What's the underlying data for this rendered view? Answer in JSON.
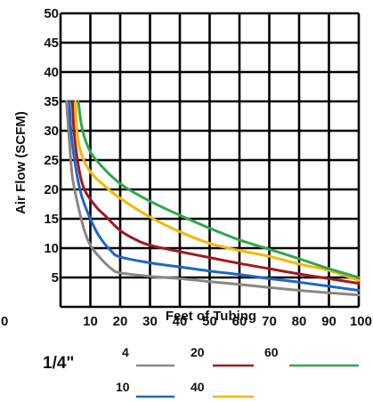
{
  "chart_data": {
    "type": "line",
    "title": "",
    "xlabel": "Feet of Tubing",
    "ylabel": "Air Flow (SCFM)",
    "xlim": [
      0,
      100
    ],
    "ylim": [
      0,
      50
    ],
    "x_tick_labels": [
      "0",
      "10",
      "20",
      "30",
      "40",
      "50",
      "60",
      "70",
      "80",
      "90",
      "100"
    ],
    "y_tick_labels": [
      "5",
      "10",
      "15",
      "20",
      "25",
      "30",
      "35",
      "40",
      "45",
      "50"
    ],
    "grid": true,
    "legend_title": "1/4\"",
    "legend_placement": "bottom",
    "series": [
      {
        "name": "4",
        "color": "#8c8580",
        "points": [
          [
            2,
            35
          ],
          [
            3,
            28
          ],
          [
            4,
            22
          ],
          [
            6,
            17
          ],
          [
            8,
            13
          ],
          [
            10,
            10.5
          ],
          [
            13,
            8.5
          ],
          [
            17,
            6.5
          ],
          [
            20,
            5.8
          ],
          [
            30,
            5.2
          ],
          [
            40,
            4.8
          ],
          [
            50,
            4.3
          ],
          [
            60,
            3.8
          ],
          [
            70,
            3.3
          ],
          [
            80,
            2.8
          ],
          [
            90,
            2.4
          ],
          [
            100,
            2
          ]
        ]
      },
      {
        "name": "10",
        "color": "#1f66c7",
        "points": [
          [
            3,
            35
          ],
          [
            3.5,
            30
          ],
          [
            5,
            24
          ],
          [
            7,
            19
          ],
          [
            10,
            15
          ],
          [
            13,
            12
          ],
          [
            17,
            9.5
          ],
          [
            20,
            8.5
          ],
          [
            30,
            7.5
          ],
          [
            40,
            6.8
          ],
          [
            50,
            6.1
          ],
          [
            60,
            5.5
          ],
          [
            70,
            4.8
          ],
          [
            80,
            4.2
          ],
          [
            90,
            3.5
          ],
          [
            100,
            2.8
          ]
        ]
      },
      {
        "name": "20",
        "color": "#a3191e",
        "points": [
          [
            4,
            35
          ],
          [
            4.5,
            30
          ],
          [
            6,
            24
          ],
          [
            8,
            20
          ],
          [
            12,
            17
          ],
          [
            15,
            15.5
          ],
          [
            20,
            13
          ],
          [
            25,
            11.5
          ],
          [
            30,
            10.5
          ],
          [
            40,
            9.4
          ],
          [
            50,
            8.4
          ],
          [
            60,
            7.4
          ],
          [
            70,
            6.5
          ],
          [
            80,
            5.6
          ],
          [
            90,
            4.8
          ],
          [
            100,
            4
          ]
        ]
      },
      {
        "name": "40",
        "color": "#f5b800",
        "points": [
          [
            5,
            35
          ],
          [
            5.5,
            30
          ],
          [
            7,
            26
          ],
          [
            10,
            23
          ],
          [
            15,
            20.5
          ],
          [
            20,
            18.5
          ],
          [
            30,
            15.3
          ],
          [
            40,
            12.8
          ],
          [
            50,
            10.8
          ],
          [
            60,
            9.6
          ],
          [
            70,
            8.6
          ],
          [
            80,
            7.3
          ],
          [
            90,
            6.2
          ],
          [
            100,
            4.5
          ]
        ]
      },
      {
        "name": "60",
        "color": "#2fa84f",
        "points": [
          [
            6,
            35
          ],
          [
            7,
            31
          ],
          [
            9,
            27.5
          ],
          [
            12,
            25
          ],
          [
            20,
            21
          ],
          [
            30,
            18
          ],
          [
            40,
            15.6
          ],
          [
            50,
            13.4
          ],
          [
            60,
            11.4
          ],
          [
            70,
            9.8
          ],
          [
            80,
            8.2
          ],
          [
            90,
            6.5
          ],
          [
            100,
            5
          ]
        ]
      }
    ]
  }
}
